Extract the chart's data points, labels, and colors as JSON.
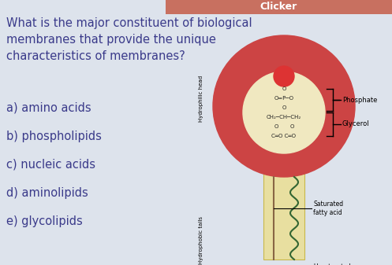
{
  "bg_color": "#dde3ec",
  "header_color": "#c87060",
  "header_text": "Clicker",
  "question": "What is the major constituent of biological\nmembranes that provide the unique\ncharacteristics of membranes?",
  "options": [
    "a) amino acids",
    "b) phospholipids",
    "c) nucleic acids",
    "d) aminolipids",
    "e) glycolipids"
  ],
  "question_fontsize": 10.5,
  "options_fontsize": 10.5,
  "text_color": "#3a3a8a",
  "phosphate_label": "Phosphate",
  "glycerol_label": "Glycerol",
  "saturated_label": "Saturated\nfatty acid",
  "unsaturated_label": "Unsaturated\nfatty acid",
  "hydrophilic_label": "Hydrophilic head",
  "hydrophobic_label": "Hydrophobic tails",
  "outer_circle_color": "#cc4444",
  "inner_circle_color": "#f0e8c0",
  "top_dot_color": "#dd3333",
  "tail_bg_color": "#e8dfa0",
  "tail_sat_color": "#886644",
  "tail_unsat_color": "#336633"
}
